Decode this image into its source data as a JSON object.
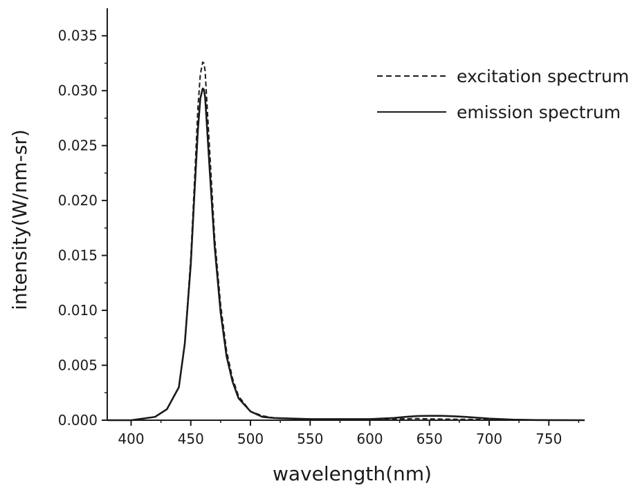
{
  "chart_data": {
    "type": "line",
    "title": "",
    "xlabel": "wavelength(nm)",
    "ylabel": "intensity(W/nm-sr)",
    "xlim": [
      380,
      780
    ],
    "ylim": [
      0,
      0.0375
    ],
    "x_ticks": [
      "400",
      "450",
      "500",
      "550",
      "600",
      "650",
      "700",
      "750"
    ],
    "y_ticks": [
      "0.000",
      "0.005",
      "0.010",
      "0.015",
      "0.020",
      "0.025",
      "0.030",
      "0.035"
    ],
    "grid": false,
    "legend_position": "top-right",
    "line_color": "#1a1a1a",
    "series": [
      {
        "name": "excitation spectrum",
        "style": "dashed",
        "x": [
          380,
          400,
          420,
          430,
          440,
          445,
          450,
          453,
          456,
          458,
          460,
          461,
          462,
          464,
          466,
          470,
          475,
          480,
          485,
          490,
          500,
          510,
          520,
          550,
          600,
          620,
          640,
          650,
          660,
          680,
          700,
          720,
          740,
          780
        ],
        "y": [
          0.0,
          0.0,
          0.0003,
          0.001,
          0.003,
          0.007,
          0.0148,
          0.0215,
          0.0285,
          0.0315,
          0.0326,
          0.0325,
          0.0318,
          0.028,
          0.0242,
          0.0166,
          0.0105,
          0.0063,
          0.0038,
          0.0022,
          0.0008,
          0.0004,
          0.0002,
          0.0001,
          0.0001,
          0.0001,
          0.00015,
          0.00012,
          0.0001,
          8e-05,
          5e-05,
          2e-05,
          0.0,
          0.0
        ]
      },
      {
        "name": "emission spectrum",
        "style": "solid",
        "x": [
          380,
          400,
          420,
          430,
          440,
          445,
          450,
          453,
          456,
          458,
          460,
          461,
          462,
          464,
          466,
          470,
          475,
          480,
          485,
          490,
          500,
          510,
          520,
          550,
          580,
          600,
          620,
          630,
          640,
          650,
          660,
          670,
          680,
          700,
          720,
          740,
          780
        ],
        "y": [
          0.0,
          0.0,
          0.0003,
          0.001,
          0.003,
          0.007,
          0.0142,
          0.0205,
          0.0265,
          0.0293,
          0.0302,
          0.0301,
          0.0294,
          0.026,
          0.0225,
          0.0158,
          0.0098,
          0.0058,
          0.0035,
          0.002,
          0.0008,
          0.0003,
          0.0002,
          0.0001,
          0.0001,
          0.0001,
          0.0002,
          0.0003,
          0.00038,
          0.0004,
          0.0004,
          0.00036,
          0.0003,
          0.00015,
          5e-05,
          1e-05,
          0.0
        ]
      }
    ]
  }
}
